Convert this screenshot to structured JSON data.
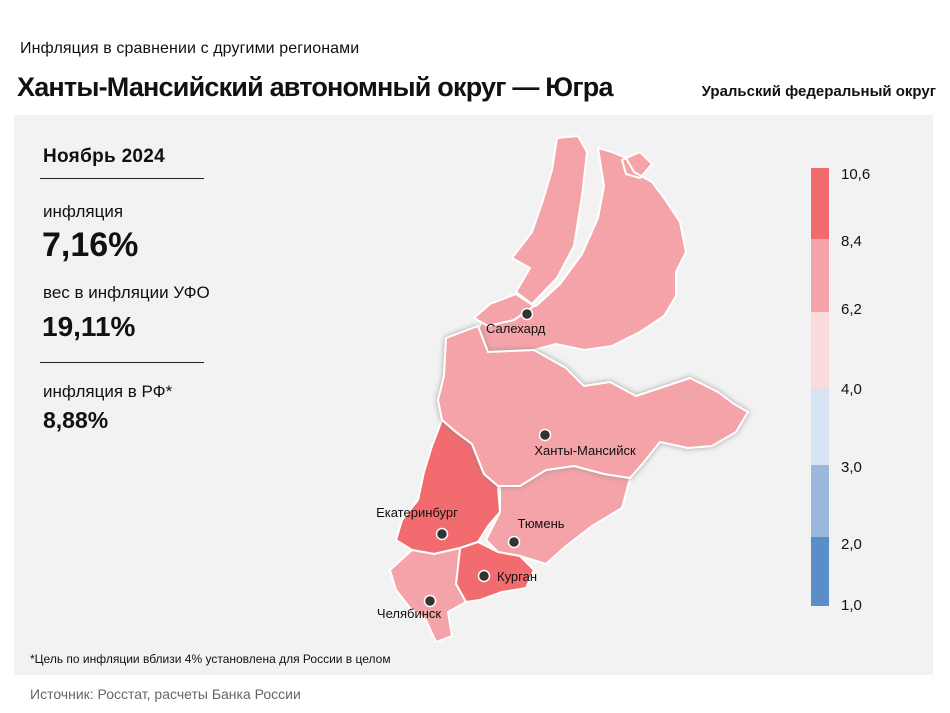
{
  "subtitle": "Инфляция  в сравнении  с другими  регионами",
  "title": "Ханты-Мансийский автономный округ — Югра",
  "district": "Уральский федеральный округ",
  "stats": {
    "month": "Ноябрь 2024",
    "inflation_label": "инфляция",
    "inflation_value": "7,16%",
    "weight_label": "вес в инфляции  УФО",
    "weight_value": "19,11%",
    "rf_label": "инфляция  в РФ*",
    "rf_value": "8,88%"
  },
  "footnote": "*Цель по инфляции вблизи 4% установлена для России в целом",
  "source": "Источник: Росстат, расчеты Банка России",
  "colors": {
    "scale": [
      "#5b8dc9",
      "#9ab7dc",
      "#d7e2f3",
      "#f9dadd",
      "#f4a3a8",
      "#f26b6f"
    ],
    "region_mid": "#f4a3a8",
    "region_high": "#f26b6f",
    "panel": "#f2f2f2"
  },
  "legend": {
    "ticks": [
      "10,6",
      "8,4",
      "6,2",
      "4,0",
      "3,0",
      "2,0",
      "1,0"
    ]
  },
  "cities": [
    {
      "name": "Салехард"
    },
    {
      "name": "Ханты-Мансийск"
    },
    {
      "name": "Екатеринбург"
    },
    {
      "name": "Тюмень"
    },
    {
      "name": "Курган"
    },
    {
      "name": "Челябинск"
    }
  ]
}
